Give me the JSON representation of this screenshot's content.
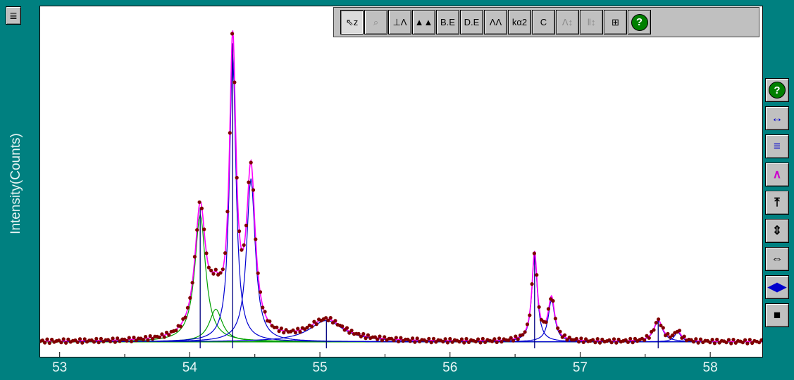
{
  "window": {
    "menu_glyph": "≣"
  },
  "toolbar": {
    "buttons": [
      {
        "name": "select-zoom-button",
        "label": "⇖z",
        "state": "pressed"
      },
      {
        "name": "magnify-button",
        "label": "⌕",
        "state": "disabled"
      },
      {
        "name": "peak-marker-button",
        "label": "⊥Λ",
        "state": "normal"
      },
      {
        "name": "fill-peak-button",
        "label": "▲▲",
        "state": "normal"
      },
      {
        "name": "background-edit-button",
        "label": "B.E",
        "state": "normal"
      },
      {
        "name": "data-edit-button",
        "label": "D.E",
        "state": "normal"
      },
      {
        "name": "peaks-button",
        "label": "ΛΛ",
        "state": "normal"
      },
      {
        "name": "ka2-button",
        "label": "kα2",
        "state": "normal"
      },
      {
        "name": "calibrate-button",
        "label": "C",
        "state": "normal"
      },
      {
        "name": "vertical-scale-button",
        "label": "Λ↕",
        "state": "disabled"
      },
      {
        "name": "bar-scale-button",
        "label": "‖↕",
        "state": "disabled"
      },
      {
        "name": "grid-button",
        "label": "⊞",
        "state": "normal"
      },
      {
        "name": "toolbar-help-button",
        "label": "?",
        "state": "help"
      }
    ]
  },
  "sidebar": {
    "buttons": [
      {
        "name": "sidebar-help-button",
        "label": "?",
        "color": "#ffffff"
      },
      {
        "name": "expand-horizontal-button",
        "label": "↔",
        "color": "#0000cc"
      },
      {
        "name": "stack-button",
        "label": "≡",
        "color": "#0000cc"
      },
      {
        "name": "expand-up-button",
        "label": "∧",
        "color": "#cc00cc"
      },
      {
        "name": "top-button",
        "label": "⤒",
        "color": "#000000"
      },
      {
        "name": "vertical-button",
        "label": "⇕",
        "color": "#000000"
      },
      {
        "name": "horizontal-button",
        "label": "⇔",
        "color": "#000000"
      },
      {
        "name": "narrow-button",
        "label": "◀▶",
        "color": "#0000cc"
      },
      {
        "name": "stop-button",
        "label": "■",
        "color": "#000000"
      }
    ]
  },
  "chart_data": {
    "type": "line",
    "ylabel": "Intensity(Counts)",
    "xlabel": "",
    "xlim": [
      52.85,
      58.4
    ],
    "ylim": [
      0,
      1
    ],
    "grid": false,
    "x_ticks": [
      53,
      54,
      55,
      56,
      57,
      58
    ],
    "colors": {
      "observed": "#800000",
      "fit": "#ff00ff",
      "component_blue": "#0000d0",
      "component_green": "#00a000",
      "marker": "#000080"
    },
    "background_level": 0.02,
    "series": [
      {
        "role": "fit-total",
        "color": "#ff00ff"
      },
      {
        "role": "observed-points",
        "color": "#800000"
      }
    ],
    "peaks": [
      {
        "center": 54.08,
        "height": 0.39,
        "width": 0.1,
        "color": "#00a000"
      },
      {
        "center": 54.2,
        "height": 0.1,
        "width": 0.12,
        "color": "#00a000"
      },
      {
        "center": 54.33,
        "height": 0.88,
        "width": 0.06,
        "color": "#0000d0"
      },
      {
        "center": 54.47,
        "height": 0.5,
        "width": 0.08,
        "color": "#0000d0"
      },
      {
        "center": 55.05,
        "height": 0.065,
        "width": 0.32,
        "color": "#0000d0"
      },
      {
        "center": 56.65,
        "height": 0.27,
        "width": 0.05,
        "color": "#0000d0"
      },
      {
        "center": 56.78,
        "height": 0.13,
        "width": 0.06,
        "color": "#0000d0"
      },
      {
        "center": 57.6,
        "height": 0.065,
        "width": 0.08,
        "color": "#0000d0"
      },
      {
        "center": 57.75,
        "height": 0.03,
        "width": 0.06,
        "color": "#0000d0"
      }
    ],
    "markers": [
      54.08,
      54.33,
      55.05,
      56.65,
      57.6
    ]
  }
}
